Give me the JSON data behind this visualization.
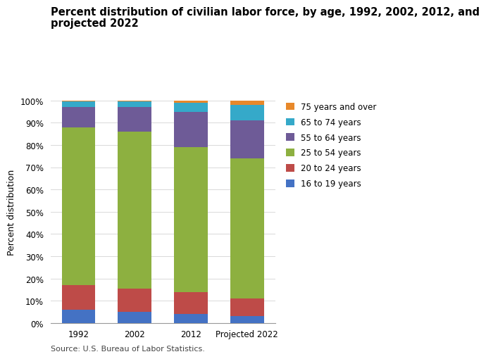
{
  "title_line1": "Percent distribution of civilian labor force, by age, 1992, 2002, 2012, and",
  "title_line2": "projected 2022",
  "categories": [
    "1992",
    "2002",
    "2012",
    "Projected 2022"
  ],
  "series": [
    {
      "label": "16 to 19 years",
      "color": "#4472C4",
      "values": [
        6.0,
        5.0,
        4.0,
        3.0
      ]
    },
    {
      "label": "20 to 24 years",
      "color": "#BE4B48",
      "values": [
        11.0,
        10.5,
        10.0,
        8.0
      ]
    },
    {
      "label": "25 to 54 years",
      "color": "#8DB040",
      "values": [
        71.0,
        70.5,
        65.0,
        63.0
      ]
    },
    {
      "label": "55 to 64 years",
      "color": "#6E5B97",
      "values": [
        9.0,
        11.0,
        16.0,
        17.0
      ]
    },
    {
      "label": "65 to 74 years",
      "color": "#35A9C9",
      "values": [
        2.5,
        2.5,
        4.0,
        7.0
      ]
    },
    {
      "label": "75 years and over",
      "color": "#E8882A",
      "values": [
        0.5,
        0.5,
        1.0,
        2.0
      ]
    }
  ],
  "ylabel": "Percent distribution",
  "ylim": [
    0,
    100
  ],
  "ytick_labels": [
    "0%",
    "10%",
    "20%",
    "30%",
    "40%",
    "50%",
    "60%",
    "70%",
    "80%",
    "90%",
    "100%"
  ],
  "ytick_values": [
    0,
    10,
    20,
    30,
    40,
    50,
    60,
    70,
    80,
    90,
    100
  ],
  "source_text": "Source: U.S. Bureau of Labor Statistics.",
  "background_color": "#FFFFFF",
  "grid_color": "#D9D9D9",
  "title_fontsize": 10.5,
  "axis_fontsize": 9,
  "tick_fontsize": 8.5,
  "legend_fontsize": 8.5,
  "bar_width": 0.6
}
